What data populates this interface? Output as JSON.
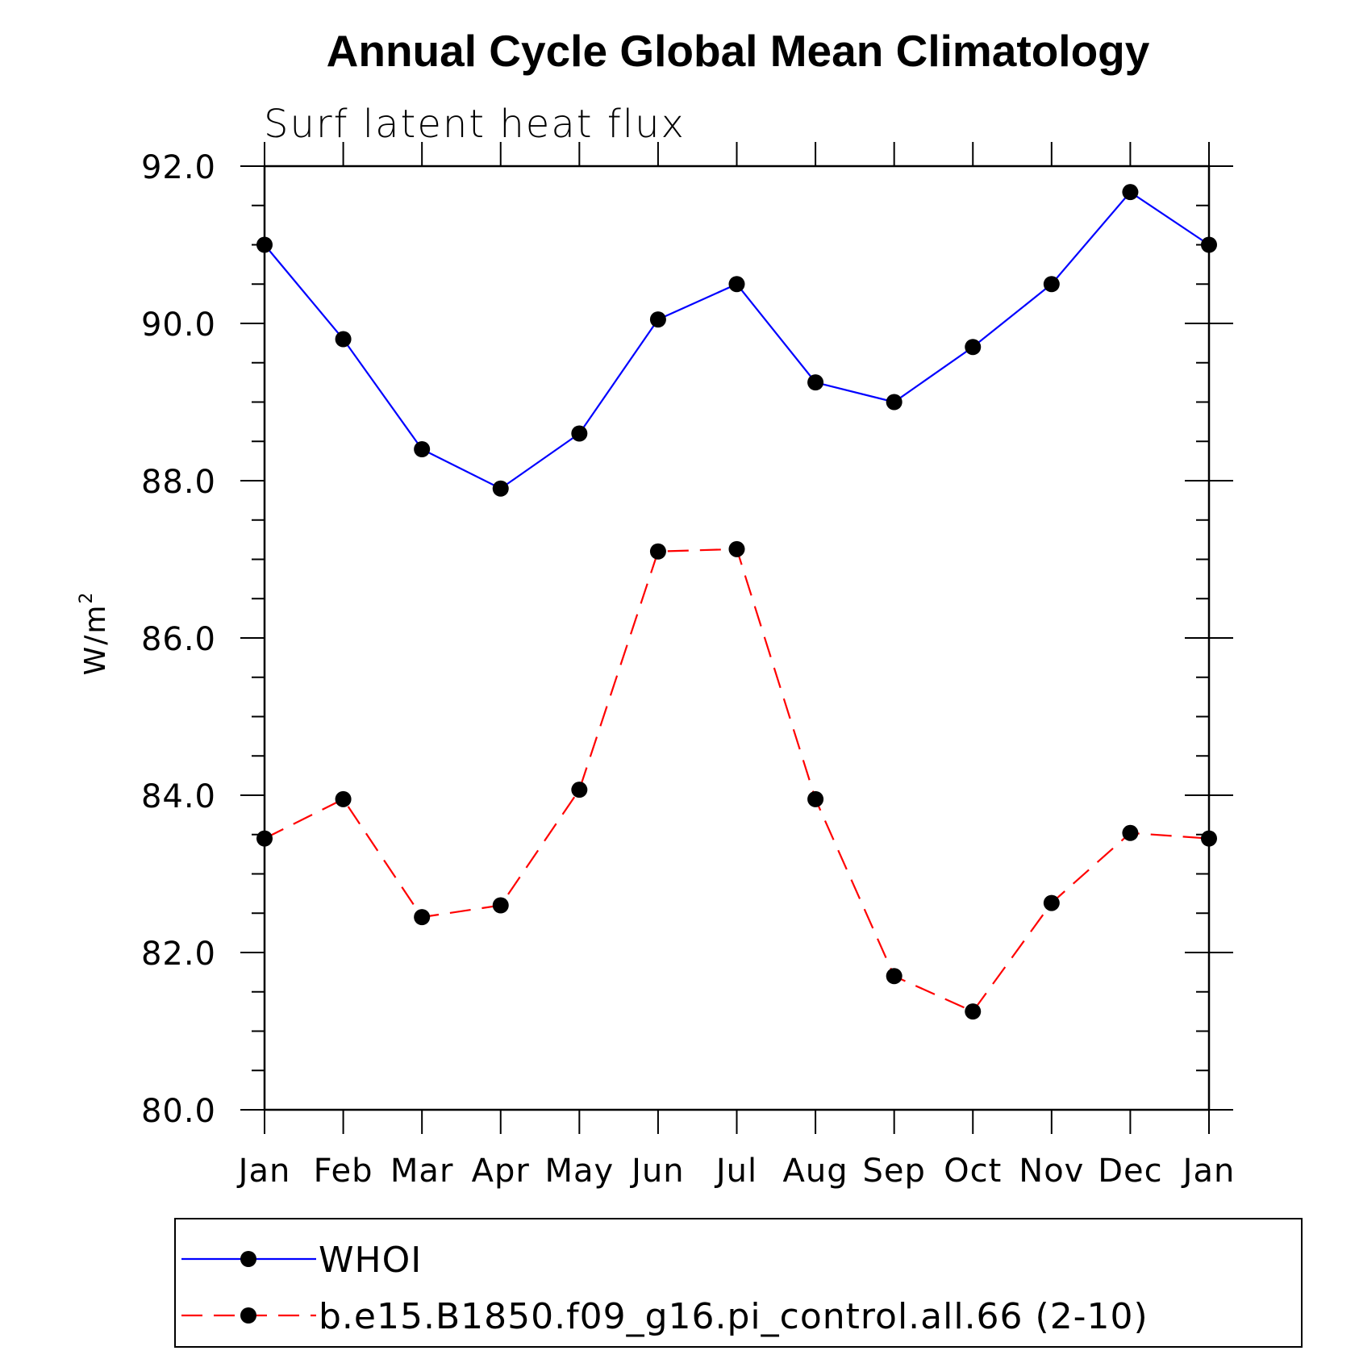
{
  "chart_data": {
    "type": "line",
    "title": "Annual Cycle Global Mean Climatology",
    "subtitle": "Surf latent heat flux",
    "ylabel": "W/m",
    "ylabel_superscript": "2",
    "xlabel": "",
    "ylim": [
      80.0,
      92.0
    ],
    "y_ticks": [
      "92.0",
      "90.0",
      "88.0",
      "86.0",
      "84.0",
      "82.0",
      "80.0"
    ],
    "categories": [
      "Jan",
      "Feb",
      "Mar",
      "Apr",
      "May",
      "Jun",
      "Jul",
      "Aug",
      "Sep",
      "Oct",
      "Nov",
      "Dec",
      "Jan"
    ],
    "series": [
      {
        "name": "WHOI",
        "color": "#0000ff",
        "dash": "solid",
        "values": [
          91.0,
          89.8,
          88.4,
          87.9,
          88.6,
          90.05,
          90.5,
          89.25,
          89.0,
          89.7,
          90.5,
          91.67,
          91.0
        ]
      },
      {
        "name": "b.e15.B1850.f09_g16.pi_control.all.66 (2-10)",
        "color": "#ff0000",
        "dash": "dashed",
        "values": [
          83.45,
          83.95,
          82.45,
          82.6,
          84.07,
          87.1,
          87.13,
          83.95,
          81.7,
          81.25,
          82.63,
          83.52,
          83.45
        ]
      }
    ],
    "legend_position": "bottom"
  }
}
